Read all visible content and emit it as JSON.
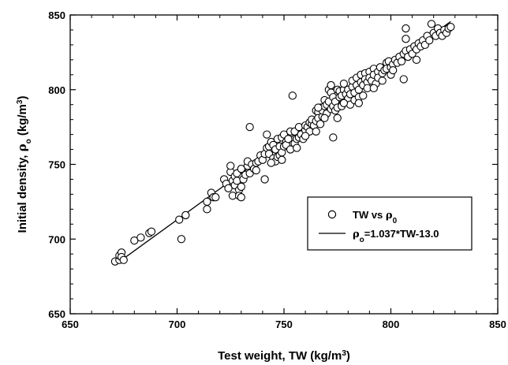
{
  "chart_data": {
    "type": "scatter",
    "xlabel": {
      "main": "Test weight, TW (kg/m",
      "sup": "3",
      "tail": ")"
    },
    "ylabel": {
      "main": "Initial density, ",
      "rho": "ρ",
      "sub": "o",
      "mid": " (kg/m",
      "sup": "3",
      "tail": ")"
    },
    "xlim": [
      650,
      850
    ],
    "ylim": [
      650,
      850
    ],
    "x_ticks": [
      650,
      700,
      750,
      800,
      850
    ],
    "y_ticks": [
      650,
      700,
      750,
      800,
      850
    ],
    "grid": false,
    "legend": {
      "position": "lower-right",
      "scatter_label": {
        "main": "TW vs ",
        "rho": "ρ",
        "sub": "0"
      },
      "line_label": {
        "rho": "ρ",
        "sub": "o",
        "main": "=1.037*TW-13.0"
      }
    },
    "fit_line": {
      "slope": 1.037,
      "intercept": -13.0,
      "x_range": [
        671,
        828
      ]
    },
    "series": [
      {
        "type": "scatter",
        "points": [
          [
            671,
            685
          ],
          [
            673,
            686
          ],
          [
            673,
            689
          ],
          [
            674,
            691
          ],
          [
            674,
            688
          ],
          [
            675,
            686
          ],
          [
            680,
            699
          ],
          [
            683,
            701
          ],
          [
            687,
            704
          ],
          [
            688,
            705
          ],
          [
            701,
            713
          ],
          [
            702,
            700
          ],
          [
            704,
            716
          ],
          [
            714,
            720
          ],
          [
            714,
            725
          ],
          [
            716,
            731
          ],
          [
            717,
            728
          ],
          [
            718,
            728
          ],
          [
            722,
            740
          ],
          [
            723,
            737
          ],
          [
            724,
            734
          ],
          [
            725,
            745
          ],
          [
            725,
            749
          ],
          [
            726,
            739
          ],
          [
            726,
            729
          ],
          [
            727,
            742
          ],
          [
            727,
            736
          ],
          [
            728,
            744
          ],
          [
            728,
            739
          ],
          [
            729,
            733
          ],
          [
            729,
            729
          ],
          [
            730,
            747
          ],
          [
            730,
            728
          ],
          [
            731,
            740
          ],
          [
            732,
            743
          ],
          [
            733,
            749
          ],
          [
            733,
            752
          ],
          [
            734,
            744
          ],
          [
            734,
            775
          ],
          [
            735,
            750
          ],
          [
            736,
            747
          ],
          [
            737,
            751
          ],
          [
            737,
            746
          ],
          [
            738,
            752
          ],
          [
            739,
            756
          ],
          [
            740,
            753
          ],
          [
            741,
            757
          ],
          [
            741,
            740
          ],
          [
            742,
            770
          ],
          [
            742,
            761
          ],
          [
            743,
            762
          ],
          [
            743,
            757
          ],
          [
            744,
            765
          ],
          [
            745,
            763
          ],
          [
            745,
            754
          ],
          [
            746,
            760
          ],
          [
            746,
            752
          ],
          [
            747,
            767
          ],
          [
            747,
            755
          ],
          [
            748,
            762
          ],
          [
            748,
            756
          ],
          [
            749,
            758
          ],
          [
            749,
            768
          ],
          [
            750,
            762
          ],
          [
            750,
            770
          ],
          [
            751,
            765
          ],
          [
            751,
            763
          ],
          [
            752,
            767
          ],
          [
            753,
            772
          ],
          [
            753,
            760
          ],
          [
            754,
            796
          ],
          [
            755,
            764
          ],
          [
            755,
            772
          ],
          [
            756,
            767
          ],
          [
            757,
            768
          ],
          [
            757,
            775
          ],
          [
            758,
            770
          ],
          [
            759,
            767
          ],
          [
            760,
            773
          ],
          [
            760,
            776
          ],
          [
            761,
            775
          ],
          [
            762,
            778
          ],
          [
            762,
            772
          ],
          [
            763,
            777
          ],
          [
            763,
            780
          ],
          [
            764,
            776
          ],
          [
            765,
            779
          ],
          [
            765,
            786
          ],
          [
            766,
            785
          ],
          [
            766,
            781
          ],
          [
            767,
            777
          ],
          [
            767,
            788
          ],
          [
            768,
            782
          ],
          [
            768,
            786
          ],
          [
            769,
            789
          ],
          [
            769,
            793
          ],
          [
            770,
            790
          ],
          [
            770,
            784
          ],
          [
            771,
            792
          ],
          [
            771,
            800
          ],
          [
            772,
            798
          ],
          [
            772,
            803
          ],
          [
            772,
            787
          ],
          [
            773,
            795
          ],
          [
            773,
            789
          ],
          [
            773,
            768
          ],
          [
            774,
            786
          ],
          [
            774,
            792
          ],
          [
            775,
            788
          ],
          [
            775,
            800
          ],
          [
            776,
            799
          ],
          [
            776,
            795
          ],
          [
            777,
            789
          ],
          [
            777,
            796
          ],
          [
            778,
            800
          ],
          [
            778,
            804
          ],
          [
            779,
            792
          ],
          [
            779,
            797
          ],
          [
            780,
            800
          ],
          [
            780,
            794
          ],
          [
            781,
            790
          ],
          [
            781,
            797
          ],
          [
            782,
            802
          ],
          [
            782,
            806
          ],
          [
            783,
            798
          ],
          [
            783,
            793
          ],
          [
            784,
            803
          ],
          [
            784,
            808
          ],
          [
            785,
            795
          ],
          [
            785,
            800
          ],
          [
            786,
            810
          ],
          [
            786,
            805
          ],
          [
            787,
            803
          ],
          [
            787,
            796
          ],
          [
            788,
            811
          ],
          [
            788,
            807
          ],
          [
            789,
            805
          ],
          [
            789,
            801
          ],
          [
            790,
            812
          ],
          [
            790,
            808
          ],
          [
            791,
            806
          ],
          [
            792,
            814
          ],
          [
            792,
            810
          ],
          [
            793,
            804
          ],
          [
            794,
            812
          ],
          [
            794,
            808
          ],
          [
            795,
            815
          ],
          [
            796,
            811
          ],
          [
            796,
            806
          ],
          [
            797,
            813
          ],
          [
            798,
            818
          ],
          [
            798,
            814
          ],
          [
            799,
            819
          ],
          [
            800,
            815
          ],
          [
            800,
            810
          ],
          [
            801,
            817
          ],
          [
            802,
            820
          ],
          [
            803,
            818
          ],
          [
            804,
            822
          ],
          [
            805,
            819
          ],
          [
            806,
            824
          ],
          [
            806,
            807
          ],
          [
            807,
            826
          ],
          [
            807,
            834
          ],
          [
            807,
            841
          ],
          [
            808,
            822
          ],
          [
            809,
            827
          ],
          [
            810,
            824
          ],
          [
            811,
            829
          ],
          [
            812,
            827
          ],
          [
            813,
            831
          ],
          [
            814,
            829
          ],
          [
            815,
            833
          ],
          [
            816,
            830
          ],
          [
            817,
            836
          ],
          [
            818,
            833
          ],
          [
            819,
            844
          ],
          [
            820,
            838
          ],
          [
            821,
            836
          ],
          [
            822,
            841
          ],
          [
            823,
            838
          ],
          [
            824,
            836
          ],
          [
            825,
            840
          ],
          [
            826,
            838
          ],
          [
            827,
            841
          ],
          [
            828,
            842
          ],
          [
            766,
            788
          ],
          [
            769,
            781
          ],
          [
            778,
            791
          ],
          [
            792,
            801
          ],
          [
            760,
            769
          ],
          [
            756,
            761
          ],
          [
            744,
            751
          ],
          [
            730,
            735
          ],
          [
            812,
            820
          ],
          [
            801,
            813
          ],
          [
            785,
            791
          ],
          [
            775,
            781
          ],
          [
            765,
            772
          ],
          [
            749,
            753
          ]
        ]
      }
    ]
  }
}
